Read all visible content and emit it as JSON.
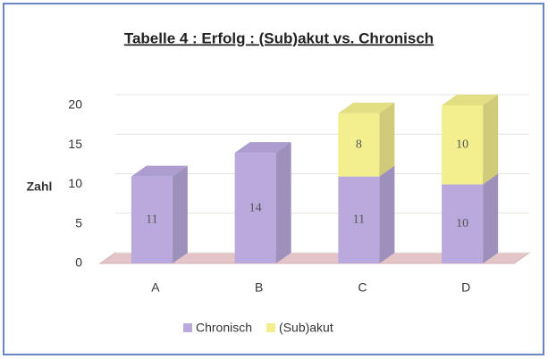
{
  "chart_data": {
    "type": "stacked-bar-3d",
    "title": "Tabelle 4 : Erfolg : (Sub)akut vs. Chronisch",
    "y_label": "Zahl",
    "categories": [
      "A",
      "B",
      "C",
      "D"
    ],
    "series": [
      {
        "name": "Chronisch",
        "color": "#b9a9dd",
        "values": [
          11,
          14,
          11,
          10
        ]
      },
      {
        "name": "(Sub)akut",
        "color": "#f3ef8e",
        "values": [
          null,
          null,
          8,
          10
        ]
      }
    ],
    "ylim": [
      0,
      20
    ],
    "yticks": [
      0,
      5,
      10,
      15,
      20
    ],
    "grid": true,
    "legend": "bottom"
  }
}
